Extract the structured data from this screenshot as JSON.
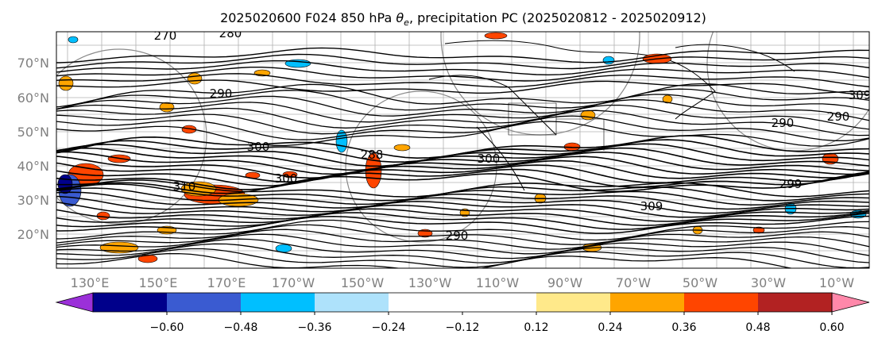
{
  "title": {
    "prefix": "2025020600 F024 850 hPa ",
    "theta_symbol": "θ",
    "theta_subscript": "e",
    "suffix": ", precipitation PC (2025020812 - 2025020912)"
  },
  "map": {
    "lat_labels": [
      "70°N",
      "60°N",
      "50°N",
      "40°N",
      "30°N",
      "20°N"
    ],
    "lon_labels": [
      "130°E",
      "150°E",
      "170°E",
      "170°W",
      "150°W",
      "130°W",
      "110°W",
      "90°W",
      "70°W",
      "50°W",
      "30°W",
      "10°W"
    ],
    "contour_labels": [
      "270",
      "280",
      "290",
      "300",
      "310",
      "300",
      "288",
      "300",
      "309",
      "290",
      "299",
      "290",
      "309",
      "290"
    ]
  },
  "colorbar": {
    "tick_labels": [
      "−0.60",
      "−0.48",
      "−0.36",
      "−0.24",
      "−0.12",
      "0.12",
      "0.24",
      "0.36",
      "0.48",
      "0.60"
    ],
    "colors": {
      "under": "#9b30d9",
      "bins": [
        "#00008b",
        "#3a5bd1",
        "#00bfff",
        "#aee2fb",
        "#ffffff",
        "#ffffff",
        "#ffe98a",
        "#ffa500",
        "#ff4500",
        "#b22222"
      ],
      "over": "#ff88aa"
    }
  }
}
